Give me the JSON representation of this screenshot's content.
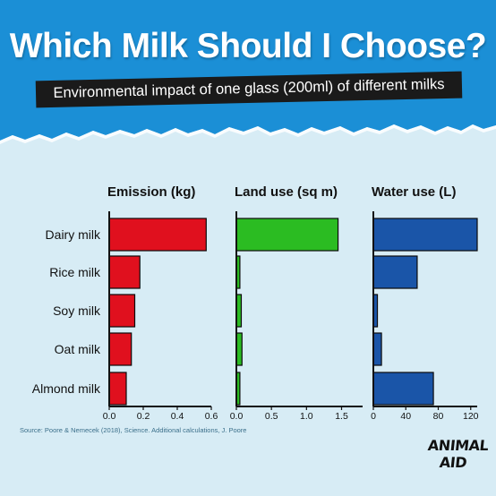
{
  "title": "Which Milk Should I Choose?",
  "subtitle": "Environmental impact of one glass (200ml) of different milks",
  "source": "Source: Poore & Nemecek (2018), Science. Additional calculations, J. Poore",
  "logo": {
    "line1": "ANIMAL",
    "line2": "AID"
  },
  "colors": {
    "banner": "#1b8fd6",
    "background": "#d7ecf5",
    "emission": "#e0101e",
    "land": "#2bbc22",
    "water": "#1a55a8",
    "bar_stroke": "#0b0b0b"
  },
  "chart_data": [
    {
      "type": "bar",
      "orientation": "horizontal",
      "title": "Emission (kg)",
      "categories": [
        "Dairy milk",
        "Rice milk",
        "Soy milk",
        "Oat milk",
        "Almond milk"
      ],
      "values": [
        0.57,
        0.18,
        0.15,
        0.13,
        0.1
      ],
      "xlim": [
        0,
        0.6
      ],
      "ticks": [
        0.0,
        0.2,
        0.4,
        0.6
      ],
      "tick_labels": [
        "0.0",
        "0.2",
        "0.4",
        "0.6"
      ],
      "color": "#e0101e"
    },
    {
      "type": "bar",
      "orientation": "horizontal",
      "title": "Land use (sq m)",
      "categories": [
        "Dairy milk",
        "Rice milk",
        "Soy milk",
        "Oat milk",
        "Almond milk"
      ],
      "values": [
        1.45,
        0.05,
        0.07,
        0.08,
        0.05
      ],
      "xlim": [
        0,
        1.8
      ],
      "ticks": [
        0.0,
        0.5,
        1.0,
        1.5
      ],
      "tick_labels": [
        "0.0",
        "0.5",
        "1.0",
        "1.5"
      ],
      "color": "#2bbc22"
    },
    {
      "type": "bar",
      "orientation": "horizontal",
      "title": "Water use (L)",
      "categories": [
        "Dairy milk",
        "Rice milk",
        "Soy milk",
        "Oat milk",
        "Almond milk"
      ],
      "values": [
        128,
        54,
        5,
        10,
        74
      ],
      "xlim": [
        0,
        128
      ],
      "ticks": [
        0,
        40,
        80,
        120
      ],
      "tick_labels": [
        "0",
        "40",
        "80",
        "120"
      ],
      "color": "#1a55a8"
    }
  ]
}
